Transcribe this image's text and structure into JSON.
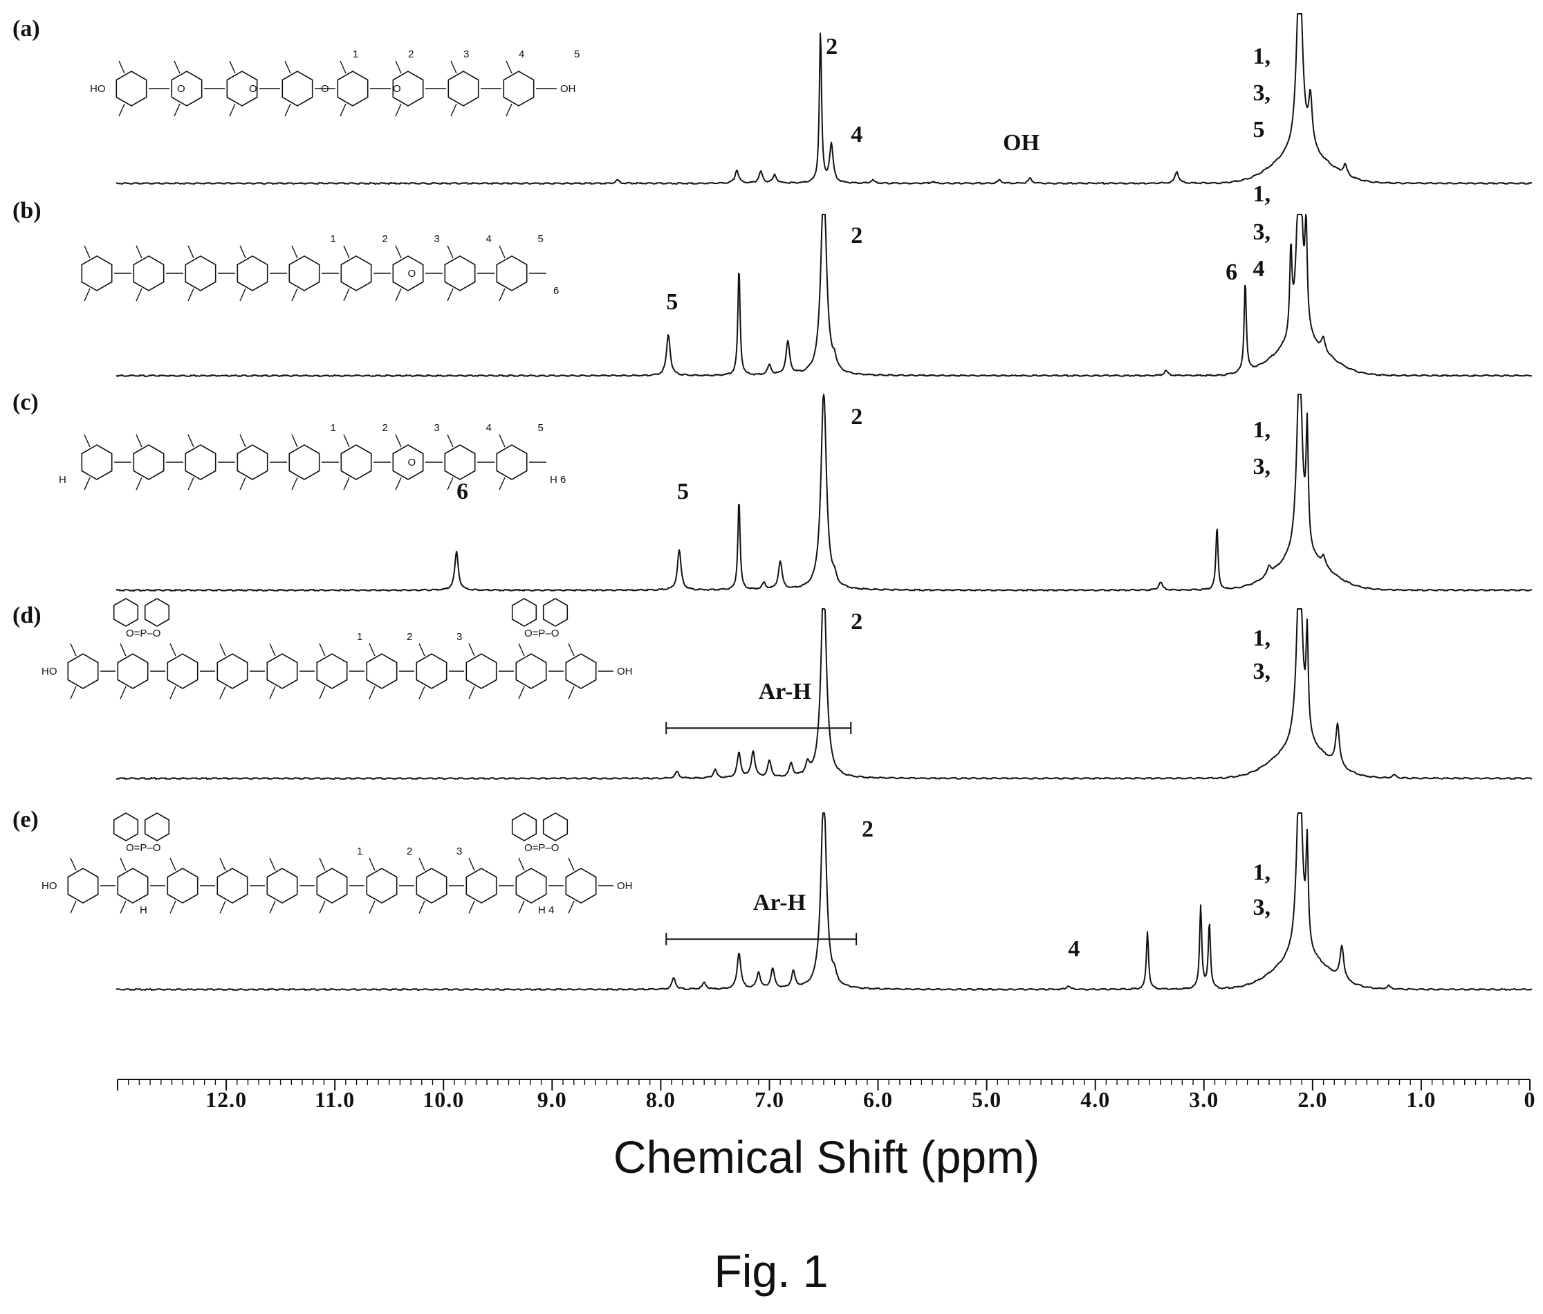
{
  "figure_caption": "Fig. 1",
  "chart_data": {
    "type": "line",
    "xlabel": "Chemical Shift (ppm)",
    "xlim": [
      13.0,
      0.0
    ],
    "x_reversed": true,
    "x_ticks": [
      12.0,
      11.0,
      10.0,
      9.0,
      8.0,
      7.0,
      6.0,
      5.0,
      4.0,
      3.0,
      2.0,
      1.0,
      0
    ],
    "x_tick_labels": [
      "12.0",
      "11.0",
      "10.0",
      "9.0",
      "8.0",
      "7.0",
      "6.0",
      "5.0",
      "4.0",
      "3.0",
      "2.0",
      "1.0",
      "0"
    ],
    "y_axis": "none (stacked spectra)",
    "grid": false,
    "series": [
      {
        "name": "(a)",
        "peaks": [
          {
            "x": 8.4,
            "h": 0.02
          },
          {
            "x": 7.3,
            "h": 0.08
          },
          {
            "x": 7.08,
            "h": 0.07
          },
          {
            "x": 6.95,
            "h": 0.05
          },
          {
            "x": 6.53,
            "h": 0.92
          },
          {
            "x": 6.43,
            "h": 0.23
          },
          {
            "x": 6.05,
            "h": 0.02
          },
          {
            "x": 5.5,
            "h": 0.01
          },
          {
            "x": 4.88,
            "h": 0.02
          },
          {
            "x": 4.6,
            "h": 0.03
          },
          {
            "x": 3.25,
            "h": 0.07
          },
          {
            "x": 2.12,
            "h": 1.2
          },
          {
            "x": 2.02,
            "h": 0.3
          },
          {
            "x": 1.7,
            "h": 0.06
          }
        ],
        "annotations": [
          {
            "text": "2",
            "x": 6.48,
            "level": 0.78
          },
          {
            "text": "4",
            "x": 6.25,
            "level": 0.25
          },
          {
            "text": "OH",
            "x": 4.85,
            "level": 0.2
          },
          {
            "text": "1,",
            "x": 2.55,
            "level": 0.72
          },
          {
            "text": "3,",
            "x": 2.55,
            "level": 0.5
          },
          {
            "text": "5",
            "x": 2.55,
            "level": 0.28
          }
        ]
      },
      {
        "name": "(b)",
        "peaks": [
          {
            "x": 7.93,
            "h": 0.25
          },
          {
            "x": 7.28,
            "h": 0.65
          },
          {
            "x": 7.0,
            "h": 0.06
          },
          {
            "x": 6.83,
            "h": 0.2
          },
          {
            "x": 6.5,
            "h": 1.2
          },
          {
            "x": 6.4,
            "h": 0.06
          },
          {
            "x": 3.35,
            "h": 0.03
          },
          {
            "x": 2.62,
            "h": 0.55
          },
          {
            "x": 2.2,
            "h": 0.5
          },
          {
            "x": 2.12,
            "h": 1.2
          },
          {
            "x": 2.06,
            "h": 0.6
          },
          {
            "x": 1.9,
            "h": 0.08
          }
        ],
        "annotations": [
          {
            "text": "5",
            "x": 7.95,
            "level": 0.4
          },
          {
            "text": "2",
            "x": 6.25,
            "level": 0.8
          },
          {
            "text": "6",
            "x": 2.8,
            "level": 0.58
          },
          {
            "text": "1,",
            "x": 2.55,
            "level": 1.05
          },
          {
            "text": "3,",
            "x": 2.55,
            "level": 0.82
          },
          {
            "text": "4",
            "x": 2.55,
            "level": 0.6
          }
        ]
      },
      {
        "name": "(c)",
        "peaks": [
          {
            "x": 9.88,
            "h": 0.23
          },
          {
            "x": 7.83,
            "h": 0.24
          },
          {
            "x": 7.28,
            "h": 0.55
          },
          {
            "x": 7.05,
            "h": 0.04
          },
          {
            "x": 6.9,
            "h": 0.17
          },
          {
            "x": 6.5,
            "h": 1.2
          },
          {
            "x": 6.4,
            "h": 0.04
          },
          {
            "x": 3.4,
            "h": 0.05
          },
          {
            "x": 2.88,
            "h": 0.38
          },
          {
            "x": 2.4,
            "h": 0.05
          },
          {
            "x": 2.12,
            "h": 1.2
          },
          {
            "x": 2.05,
            "h": 0.7
          },
          {
            "x": 1.9,
            "h": 0.06
          }
        ],
        "annotations": [
          {
            "text": "6",
            "x": 9.88,
            "level": 0.55
          },
          {
            "text": "5",
            "x": 7.85,
            "level": 0.55
          },
          {
            "text": "2",
            "x": 6.25,
            "level": 1.0
          },
          {
            "text": "1,",
            "x": 2.55,
            "level": 0.92
          },
          {
            "text": "3,",
            "x": 2.55,
            "level": 0.7
          }
        ]
      },
      {
        "name": "(d)",
        "peaks": [
          {
            "x": 7.85,
            "h": 0.04
          },
          {
            "x": 7.5,
            "h": 0.05
          },
          {
            "x": 7.28,
            "h": 0.15
          },
          {
            "x": 7.15,
            "h": 0.16
          },
          {
            "x": 7.0,
            "h": 0.1
          },
          {
            "x": 6.8,
            "h": 0.08
          },
          {
            "x": 6.65,
            "h": 0.07
          },
          {
            "x": 6.5,
            "h": 1.2
          },
          {
            "x": 2.12,
            "h": 1.2
          },
          {
            "x": 2.05,
            "h": 0.6
          },
          {
            "x": 1.77,
            "h": 0.25
          },
          {
            "x": 1.25,
            "h": 0.02
          }
        ],
        "annotations": [
          {
            "text": "Ar-H",
            "x": 7.1,
            "level": 0.48
          },
          {
            "text": "2",
            "x": 6.25,
            "level": 0.9
          },
          {
            "text": "1,",
            "x": 2.55,
            "level": 0.8
          },
          {
            "text": "3,",
            "x": 2.55,
            "level": 0.6
          }
        ],
        "range_bracket": {
          "label": "Ar-H",
          "from": 7.95,
          "to": 6.25
        }
      },
      {
        "name": "(e)",
        "peaks": [
          {
            "x": 7.88,
            "h": 0.07
          },
          {
            "x": 7.6,
            "h": 0.04
          },
          {
            "x": 7.28,
            "h": 0.22
          },
          {
            "x": 7.1,
            "h": 0.1
          },
          {
            "x": 6.97,
            "h": 0.12
          },
          {
            "x": 6.78,
            "h": 0.1
          },
          {
            "x": 6.5,
            "h": 1.2
          },
          {
            "x": 6.4,
            "h": 0.05
          },
          {
            "x": 4.25,
            "h": 0.02
          },
          {
            "x": 3.52,
            "h": 0.35
          },
          {
            "x": 3.03,
            "h": 0.5
          },
          {
            "x": 2.95,
            "h": 0.4
          },
          {
            "x": 2.12,
            "h": 1.2
          },
          {
            "x": 2.05,
            "h": 0.6
          },
          {
            "x": 1.73,
            "h": 0.2
          },
          {
            "x": 1.3,
            "h": 0.02
          }
        ],
        "annotations": [
          {
            "text": "Ar-H",
            "x": 7.15,
            "level": 0.48
          },
          {
            "text": "2",
            "x": 6.15,
            "level": 0.92
          },
          {
            "text": "4",
            "x": 4.25,
            "level": 0.2
          },
          {
            "text": "1,",
            "x": 2.55,
            "level": 0.66
          },
          {
            "text": "3,",
            "x": 2.55,
            "level": 0.45
          }
        ],
        "range_bracket": {
          "label": "Ar-H",
          "from": 7.95,
          "to": 6.2
        }
      }
    ]
  },
  "structures": {
    "a": {
      "labels": {
        "ho_left": "HO",
        "oh_right": "OH",
        "o1": "O",
        "o2": "O",
        "o3": "O",
        "o4": "O"
      },
      "numbers": [
        "1",
        "2",
        "3",
        "4",
        "5"
      ]
    },
    "b": {
      "labels": {
        "o": "O",
        "c6": "6"
      },
      "numbers": [
        "1",
        "2",
        "3",
        "4",
        "5"
      ]
    },
    "c": {
      "labels": {
        "o": "O",
        "h_left": "H",
        "h6": "H 6"
      },
      "numbers": [
        "1",
        "2",
        "3",
        "4",
        "5"
      ]
    },
    "d": {
      "labels": {
        "ho": "HO",
        "oh": "OH",
        "po": "O=P–O"
      },
      "numbers": [
        "1",
        "2",
        "3"
      ]
    },
    "e": {
      "labels": {
        "ho": "HO",
        "oh": "OH",
        "po": "O=P–O",
        "h": "H",
        "h4": "H 4"
      },
      "numbers": [
        "1",
        "2",
        "3"
      ]
    }
  }
}
